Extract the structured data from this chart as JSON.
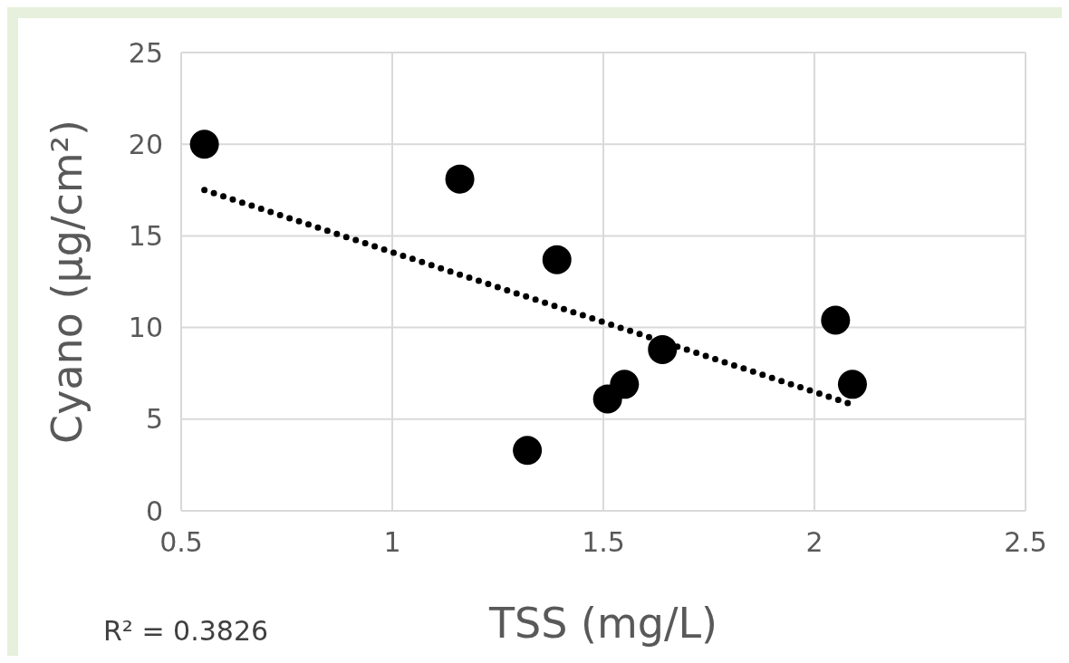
{
  "chart_data": {
    "type": "scatter",
    "xlabel": "TSS (mg/L)",
    "ylabel": "Cyano (μg/cm²)",
    "xlim": [
      0.5,
      2.5
    ],
    "xticks": [
      0.5,
      1,
      1.5,
      2,
      2.5
    ],
    "ylim": [
      0,
      25
    ],
    "yticks": [
      0,
      5,
      10,
      15,
      20,
      25
    ],
    "grid": true,
    "series": [
      {
        "color": "#000000",
        "marker": "circle",
        "x": [
          0.555,
          1.16,
          1.39,
          1.32,
          1.51,
          1.55,
          1.64,
          2.05,
          2.09
        ],
        "values": [
          20.0,
          18.1,
          13.7,
          3.3,
          6.1,
          6.9,
          8.8,
          10.4,
          6.9
        ]
      },
      {
        "type": "line",
        "color": "#000000",
        "marker": "none",
        "line_style": "dotted",
        "x": [
          0.555,
          2.09
        ],
        "values": [
          17.5,
          5.8
        ]
      }
    ],
    "annotations": [
      "R² = 0.3826"
    ]
  }
}
